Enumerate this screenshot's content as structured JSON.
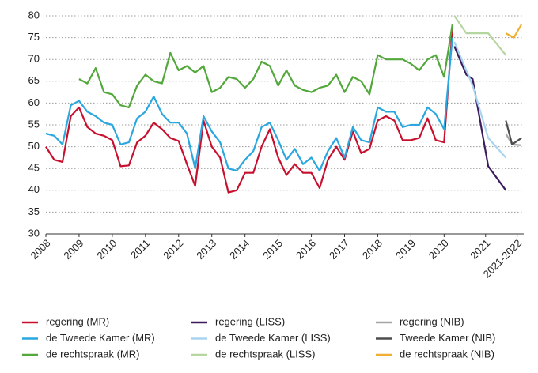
{
  "chart_data": {
    "type": "line",
    "x": [
      2008,
      2008.25,
      2008.5,
      2008.75,
      2009,
      2009.25,
      2009.5,
      2009.75,
      2010,
      2010.25,
      2010.5,
      2010.75,
      2011,
      2011.25,
      2011.5,
      2011.75,
      2012,
      2012.25,
      2012.5,
      2012.75,
      2013,
      2013.25,
      2013.5,
      2013.75,
      2014,
      2014.25,
      2014.5,
      2014.75,
      2015,
      2015.25,
      2015.5,
      2015.75,
      2016,
      2016.25,
      2016.5,
      2016.75,
      2017,
      2017.25,
      2017.5,
      2017.75,
      2018,
      2018.25,
      2018.5,
      2018.75,
      2019,
      2019.25,
      2019.5,
      2019.75,
      2020,
      2020.25
    ],
    "xlim": [
      2008,
      2022.4
    ],
    "xticks": [
      2008,
      2009,
      2010,
      2011,
      2012,
      2013,
      2014,
      2015,
      2016,
      2017,
      2018,
      2019,
      2020,
      {
        "value": 2021.25,
        "label": "2021"
      },
      {
        "value": 2022.2,
        "label": "2021-2022"
      }
    ],
    "ylim": [
      30,
      80
    ],
    "yticks": [
      30,
      35,
      40,
      45,
      50,
      55,
      60,
      65,
      70,
      75,
      80
    ],
    "grid": true,
    "legend": "bottom",
    "series": [
      {
        "name": "regering (MR)",
        "color": "#c8102e",
        "values": [
          50,
          47,
          46.5,
          57,
          59,
          54.5,
          53,
          52.5,
          51.5,
          45.5,
          45.7,
          51,
          52.5,
          55.5,
          54,
          52,
          51.3,
          46,
          41,
          56,
          50,
          47.5,
          39.5,
          40,
          44,
          44,
          50,
          54,
          47.5,
          43.5,
          46,
          44,
          44,
          40.5,
          47,
          50,
          47,
          53.5,
          48.5,
          49.5,
          56,
          57,
          56,
          51.5,
          51.5,
          52,
          56.5,
          51.5,
          51,
          77
        ]
      },
      {
        "name": "regering (LISS)",
        "color": "#3d1c5e",
        "x": [
          2020.31,
          2020.67,
          2020.86,
          2021.33,
          2021.86
        ],
        "values": [
          73,
          66.5,
          65.5,
          45.5,
          40
        ]
      },
      {
        "name": "regering (NIB)",
        "color": "#a6a6a6",
        "x": [
          2021.86,
          2022.05,
          2022.33
        ],
        "values": [
          53,
          50.5,
          50.3
        ]
      },
      {
        "name": "de Tweede Kamer (MR)",
        "color": "#2aa7de",
        "values": [
          53,
          52.5,
          50.5,
          59.5,
          60.5,
          58,
          57,
          55.5,
          55,
          50.5,
          51,
          56.5,
          58,
          61.5,
          57.5,
          55.5,
          55.5,
          53,
          45,
          57,
          53.5,
          51,
          45,
          44.5,
          47,
          49,
          54.5,
          55.5,
          51.5,
          47,
          49.5,
          46,
          47.5,
          44.5,
          49,
          52,
          47.5,
          54.5,
          51.5,
          51,
          59,
          58,
          58,
          54.5,
          55,
          55,
          59,
          57.5,
          54,
          75
        ]
      },
      {
        "name": "de Tweede Kamer (LISS)",
        "color": "#a8d4f0",
        "x": [
          2020.31,
          2020.86,
          2021.33,
          2021.86
        ],
        "values": [
          74,
          64,
          52,
          47.5
        ]
      },
      {
        "name": "Tweede Kamer (NIB)",
        "color": "#4d4d4d",
        "x": [
          2021.86,
          2022.05,
          2022.33
        ],
        "values": [
          56,
          50.5,
          52
        ]
      },
      {
        "name": "de rechtspraak (MR)",
        "color": "#52a83a",
        "values": [
          null,
          null,
          null,
          null,
          65.5,
          64.5,
          68,
          62.5,
          62,
          59.5,
          59,
          64,
          66.5,
          65,
          64.5,
          71.5,
          67.5,
          68.5,
          67,
          68.5,
          62.5,
          63.5,
          66,
          65.5,
          63.5,
          65.5,
          69.5,
          68.5,
          64,
          67.5,
          64,
          63,
          62.5,
          63.5,
          64,
          66.5,
          62.5,
          66,
          65,
          62,
          71,
          70,
          70,
          70,
          69,
          67.5,
          70,
          71,
          66,
          78
        ]
      },
      {
        "name": "de rechtspraak (LISS)",
        "color": "#b5d6a0",
        "x": [
          2020.31,
          2020.67,
          2021.33,
          2021.86
        ],
        "values": [
          80,
          76,
          76,
          71
        ]
      },
      {
        "name": "de rechtspraak (NIB)",
        "color": "#f0b030",
        "x": [
          2021.86,
          2022.1,
          2022.33
        ],
        "values": [
          76,
          75,
          78
        ]
      }
    ]
  }
}
